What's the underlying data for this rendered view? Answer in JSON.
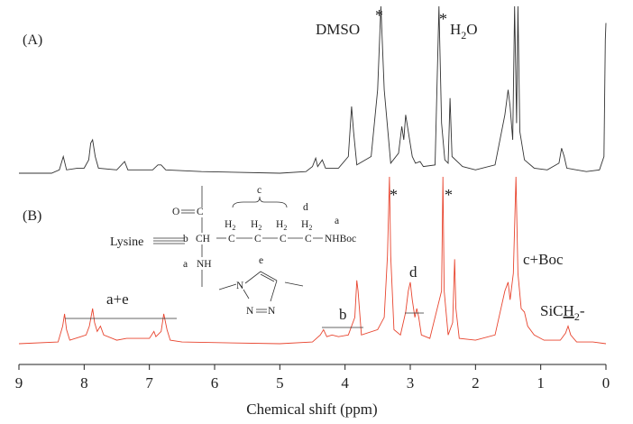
{
  "chart_data": {
    "type": "line",
    "xlabel": "Chemical shift (ppm)",
    "xlim": [
      9,
      0
    ],
    "xticks": [
      9,
      8,
      7,
      6,
      5,
      4,
      3,
      2,
      1,
      0
    ],
    "grid": false,
    "series": [
      {
        "panel": "(A)",
        "color": "#333333",
        "points": [
          [
            9.0,
            0.0
          ],
          [
            8.5,
            0.0
          ],
          [
            8.38,
            0.02
          ],
          [
            8.32,
            0.1
          ],
          [
            8.27,
            0.02
          ],
          [
            8.1,
            0.03
          ],
          [
            8.0,
            0.03
          ],
          [
            7.93,
            0.08
          ],
          [
            7.9,
            0.18
          ],
          [
            7.87,
            0.2
          ],
          [
            7.83,
            0.1
          ],
          [
            7.78,
            0.03
          ],
          [
            7.5,
            0.02
          ],
          [
            7.38,
            0.07
          ],
          [
            7.33,
            0.02
          ],
          [
            6.95,
            0.02
          ],
          [
            6.87,
            0.05
          ],
          [
            6.82,
            0.05
          ],
          [
            6.75,
            0.02
          ],
          [
            6.2,
            0.01
          ],
          [
            5.0,
            0.0
          ],
          [
            4.6,
            0.01
          ],
          [
            4.5,
            0.04
          ],
          [
            4.45,
            0.09
          ],
          [
            4.42,
            0.04
          ],
          [
            4.35,
            0.08
          ],
          [
            4.3,
            0.03
          ],
          [
            4.1,
            0.03
          ],
          [
            3.95,
            0.1
          ],
          [
            3.9,
            0.4
          ],
          [
            3.87,
            0.25
          ],
          [
            3.82,
            0.05
          ],
          [
            3.6,
            0.1
          ],
          [
            3.5,
            0.5
          ],
          [
            3.45,
            1.0
          ],
          [
            3.4,
            0.5
          ],
          [
            3.3,
            0.06
          ],
          [
            3.18,
            0.12
          ],
          [
            3.13,
            0.28
          ],
          [
            3.1,
            0.2
          ],
          [
            3.07,
            0.35
          ],
          [
            3.03,
            0.25
          ],
          [
            2.97,
            0.1
          ],
          [
            2.92,
            0.06
          ],
          [
            2.85,
            0.07
          ],
          [
            2.8,
            0.04
          ],
          [
            2.62,
            0.05
          ],
          [
            2.56,
            1.0
          ],
          [
            2.52,
            0.3
          ],
          [
            2.47,
            0.08
          ],
          [
            2.42,
            0.06
          ],
          [
            2.39,
            0.45
          ],
          [
            2.36,
            0.1
          ],
          [
            2.2,
            0.04
          ],
          [
            2.0,
            0.02
          ],
          [
            1.7,
            0.05
          ],
          [
            1.55,
            0.35
          ],
          [
            1.5,
            0.5
          ],
          [
            1.47,
            0.4
          ],
          [
            1.43,
            0.2
          ],
          [
            1.4,
            1.0
          ],
          [
            1.37,
            0.3
          ],
          [
            1.35,
            1.0
          ],
          [
            1.32,
            0.25
          ],
          [
            1.25,
            0.08
          ],
          [
            1.1,
            0.03
          ],
          [
            0.9,
            0.02
          ],
          [
            0.72,
            0.06
          ],
          [
            0.68,
            0.15
          ],
          [
            0.64,
            0.1
          ],
          [
            0.6,
            0.03
          ],
          [
            0.3,
            0.01
          ],
          [
            0.1,
            0.02
          ],
          [
            0.03,
            0.1
          ],
          [
            0.01,
            0.8
          ],
          [
            0.0,
            0.9
          ]
        ]
      },
      {
        "panel": "(B)",
        "color": "#e8452f",
        "points": [
          [
            9.0,
            0.0
          ],
          [
            8.4,
            0.01
          ],
          [
            8.33,
            0.1
          ],
          [
            8.3,
            0.17
          ],
          [
            8.27,
            0.08
          ],
          [
            8.22,
            0.02
          ],
          [
            8.05,
            0.04
          ],
          [
            7.97,
            0.05
          ],
          [
            7.92,
            0.1
          ],
          [
            7.87,
            0.2
          ],
          [
            7.84,
            0.12
          ],
          [
            7.8,
            0.07
          ],
          [
            7.75,
            0.1
          ],
          [
            7.7,
            0.05
          ],
          [
            7.5,
            0.02
          ],
          [
            7.35,
            0.03
          ],
          [
            7.0,
            0.03
          ],
          [
            6.93,
            0.07
          ],
          [
            6.9,
            0.04
          ],
          [
            6.82,
            0.07
          ],
          [
            6.78,
            0.17
          ],
          [
            6.73,
            0.08
          ],
          [
            6.68,
            0.02
          ],
          [
            6.5,
            0.01
          ],
          [
            5.0,
            0.0
          ],
          [
            4.5,
            0.01
          ],
          [
            4.38,
            0.05
          ],
          [
            4.33,
            0.08
          ],
          [
            4.28,
            0.04
          ],
          [
            4.2,
            0.05
          ],
          [
            4.1,
            0.04
          ],
          [
            3.95,
            0.05
          ],
          [
            3.85,
            0.15
          ],
          [
            3.82,
            0.36
          ],
          [
            3.8,
            0.3
          ],
          [
            3.75,
            0.05
          ],
          [
            3.5,
            0.08
          ],
          [
            3.4,
            0.15
          ],
          [
            3.35,
            0.5
          ],
          [
            3.32,
            1.0
          ],
          [
            3.3,
            0.5
          ],
          [
            3.25,
            0.08
          ],
          [
            3.15,
            0.05
          ],
          [
            3.07,
            0.18
          ],
          [
            3.03,
            0.3
          ],
          [
            3.0,
            0.35
          ],
          [
            2.97,
            0.25
          ],
          [
            2.93,
            0.15
          ],
          [
            2.9,
            0.2
          ],
          [
            2.87,
            0.15
          ],
          [
            2.83,
            0.05
          ],
          [
            2.7,
            0.03
          ],
          [
            2.52,
            0.3
          ],
          [
            2.5,
            1.0
          ],
          [
            2.48,
            0.3
          ],
          [
            2.42,
            0.05
          ],
          [
            2.35,
            0.12
          ],
          [
            2.32,
            0.48
          ],
          [
            2.3,
            0.2
          ],
          [
            2.25,
            0.03
          ],
          [
            2.0,
            0.02
          ],
          [
            1.7,
            0.05
          ],
          [
            1.55,
            0.3
          ],
          [
            1.5,
            0.35
          ],
          [
            1.47,
            0.25
          ],
          [
            1.42,
            0.4
          ],
          [
            1.38,
            1.0
          ],
          [
            1.35,
            0.4
          ],
          [
            1.3,
            0.2
          ],
          [
            1.25,
            0.18
          ],
          [
            1.2,
            0.1
          ],
          [
            1.1,
            0.05
          ],
          [
            0.95,
            0.02
          ],
          [
            0.7,
            0.02
          ],
          [
            0.62,
            0.06
          ],
          [
            0.58,
            0.1
          ],
          [
            0.54,
            0.05
          ],
          [
            0.45,
            0.01
          ],
          [
            0.2,
            0.01
          ],
          [
            0.0,
            0.0
          ]
        ]
      }
    ],
    "annotations": {
      "panel_a": "(A)",
      "panel_b": "(B)",
      "dmso": "DMSO",
      "water_base": "H",
      "water_sub": "2",
      "water_end": "O",
      "star": "*",
      "ae": "a+e",
      "b": "b",
      "d": "d",
      "cboc": "c+Boc",
      "sich2_base": "SiC",
      "sich2_under": "H",
      "sich2_sub": "2",
      "sich2_end": "-"
    },
    "structure": {
      "lysine_label": "Lysine",
      "o": "O",
      "c_carbonyl": "C",
      "b_label": "b",
      "ch": "CH",
      "h2": "H",
      "h2_sub": "2",
      "c_chain": "C",
      "nhboc": "NHBoc",
      "nh": "NH",
      "lbl_a": "a",
      "lbl_c": "c",
      "lbl_d": "d",
      "lbl_e": "e",
      "ring_n": "N"
    }
  }
}
